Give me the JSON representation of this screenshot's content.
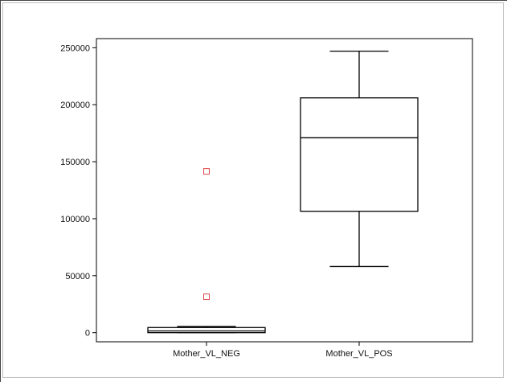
{
  "chart_data": {
    "type": "box",
    "title": "",
    "xlabel": "",
    "ylabel": "",
    "ylim": [
      -8000,
      258000
    ],
    "yticks": [
      {
        "value": 0,
        "label": "0"
      },
      {
        "value": 50000,
        "label": "50000"
      },
      {
        "value": 100000,
        "label": "100000"
      },
      {
        "value": 150000,
        "label": "150000"
      },
      {
        "value": 200000,
        "label": "200000"
      },
      {
        "value": 250000,
        "label": "250000"
      }
    ],
    "categories": [
      "Mother_VL_NEG",
      "Mother_VL_POS"
    ],
    "boxes": [
      {
        "category": "Mother_VL_NEG",
        "whisker_low": 0,
        "q1": 0,
        "median": 1500,
        "q3": 4500,
        "whisker_high": 5500,
        "outliers": [
          31500,
          141500
        ]
      },
      {
        "category": "Mother_VL_POS",
        "whisker_low": 58000,
        "q1": 106500,
        "median": 171000,
        "q3": 206000,
        "whisker_high": 247000,
        "outliers": []
      }
    ],
    "colors": {
      "box": "#000000",
      "outlier": "#e0484a",
      "frame": "#000000"
    },
    "grid": false
  }
}
